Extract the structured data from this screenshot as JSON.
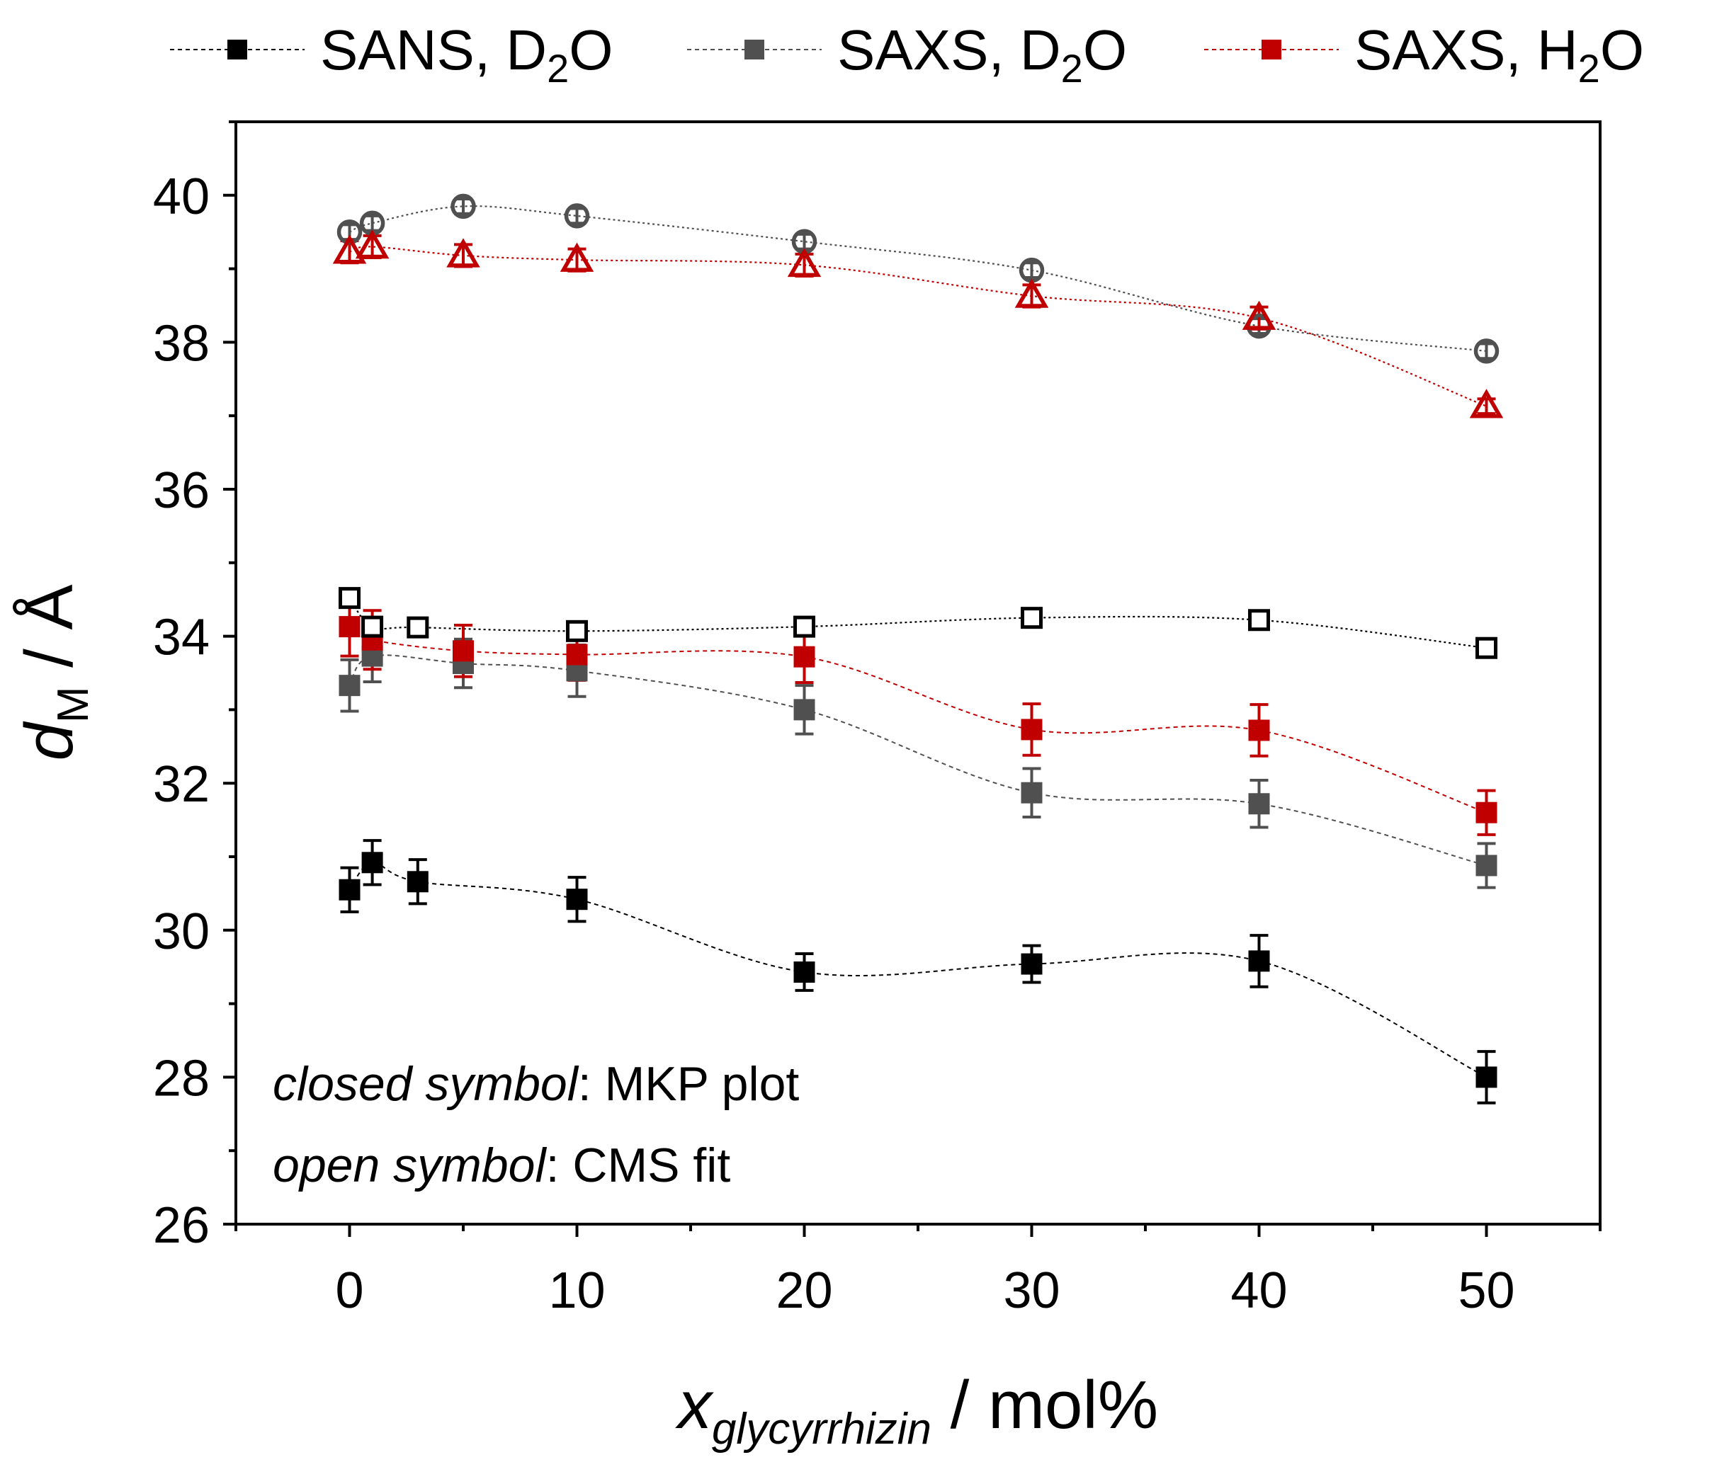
{
  "chart_data": {
    "type": "scatter",
    "xlabel": {
      "main": "x",
      "sub": "glycyrrhizin",
      "unit": " / mol%"
    },
    "ylabel": {
      "main": "d",
      "sub": "M",
      "unit": " / Å"
    },
    "xlim": [
      -5,
      55
    ],
    "ylim": [
      26,
      41
    ],
    "xticks": [
      0,
      10,
      20,
      30,
      40,
      50
    ],
    "xtick_labels": [
      "0",
      "10",
      "20",
      "30",
      "40",
      "50"
    ],
    "yticks": [
      26,
      28,
      30,
      32,
      34,
      36,
      38,
      40
    ],
    "ytick_labels": [
      "26",
      "28",
      "30",
      "32",
      "34",
      "36",
      "38",
      "40"
    ],
    "legend": [
      {
        "main": "SANS, D",
        "sub": "2",
        "tail": "O",
        "color": "#000000"
      },
      {
        "main": "SAXS, D",
        "sub": "2",
        "tail": "O",
        "color": "#505050"
      },
      {
        "main": "SAXS, H",
        "sub": "2",
        "tail": "O",
        "color": "#c00000"
      }
    ],
    "annotations": [
      {
        "italic": "closed symbol",
        "rest": ": MKP plot"
      },
      {
        "italic": "open symbol",
        "rest": ": CMS fit"
      }
    ],
    "series": [
      {
        "name": "SANS, D2O (MKP plot)",
        "marker": "square-filled",
        "color": "#000000",
        "x": [
          0,
          1,
          3,
          10,
          20,
          30,
          40,
          50
        ],
        "y": [
          30.55,
          30.92,
          30.66,
          30.42,
          29.43,
          29.54,
          29.58,
          28.0
        ],
        "err": [
          0.3,
          0.3,
          0.3,
          0.3,
          0.25,
          0.25,
          0.35,
          0.35
        ]
      },
      {
        "name": "SAXS, D2O (MKP plot)",
        "marker": "square-filled",
        "color": "#505050",
        "x": [
          0,
          1,
          5,
          10,
          20,
          30,
          40,
          50
        ],
        "y": [
          33.33,
          33.73,
          33.63,
          33.53,
          33.0,
          31.87,
          31.72,
          30.88
        ],
        "err": [
          0.35,
          0.35,
          0.33,
          0.35,
          0.33,
          0.33,
          0.32,
          0.3
        ]
      },
      {
        "name": "SAXS, H2O (MKP plot)",
        "marker": "square-filled",
        "color": "#c00000",
        "x": [
          0,
          1,
          5,
          10,
          20,
          30,
          40,
          50
        ],
        "y": [
          34.13,
          33.95,
          33.8,
          33.75,
          33.72,
          32.73,
          32.72,
          31.6
        ],
        "err": [
          0.4,
          0.4,
          0.35,
          0.35,
          0.35,
          0.35,
          0.35,
          0.3
        ]
      },
      {
        "name": "SANS, D2O (CMS fit)",
        "marker": "square-open",
        "color": "#000000",
        "x": [
          0,
          1,
          3,
          10,
          20,
          30,
          40,
          50
        ],
        "y": [
          34.52,
          34.13,
          34.12,
          34.07,
          34.13,
          34.25,
          34.22,
          33.84
        ],
        "err": [
          0.05,
          0.05,
          0.05,
          0.05,
          0.05,
          0.05,
          0.05,
          0.05
        ]
      },
      {
        "name": "SAXS, D2O (CMS fit)",
        "marker": "circle-open",
        "color": "#505050",
        "x": [
          0,
          1,
          5,
          10,
          20,
          30,
          40,
          50
        ],
        "y": [
          39.5,
          39.62,
          39.85,
          39.72,
          39.37,
          38.98,
          38.22,
          37.88
        ],
        "err": [
          0.1,
          0.1,
          0.1,
          0.1,
          0.1,
          0.1,
          0.1,
          0.1
        ]
      },
      {
        "name": "SAXS, H2O (CMS fit)",
        "marker": "triangle-open",
        "color": "#c00000",
        "x": [
          0,
          1,
          5,
          10,
          20,
          30,
          40,
          50
        ],
        "y": [
          39.23,
          39.3,
          39.18,
          39.12,
          39.05,
          38.63,
          38.33,
          37.13
        ],
        "err": [
          0.15,
          0.15,
          0.15,
          0.15,
          0.15,
          0.15,
          0.15,
          0.1
        ]
      }
    ]
  }
}
